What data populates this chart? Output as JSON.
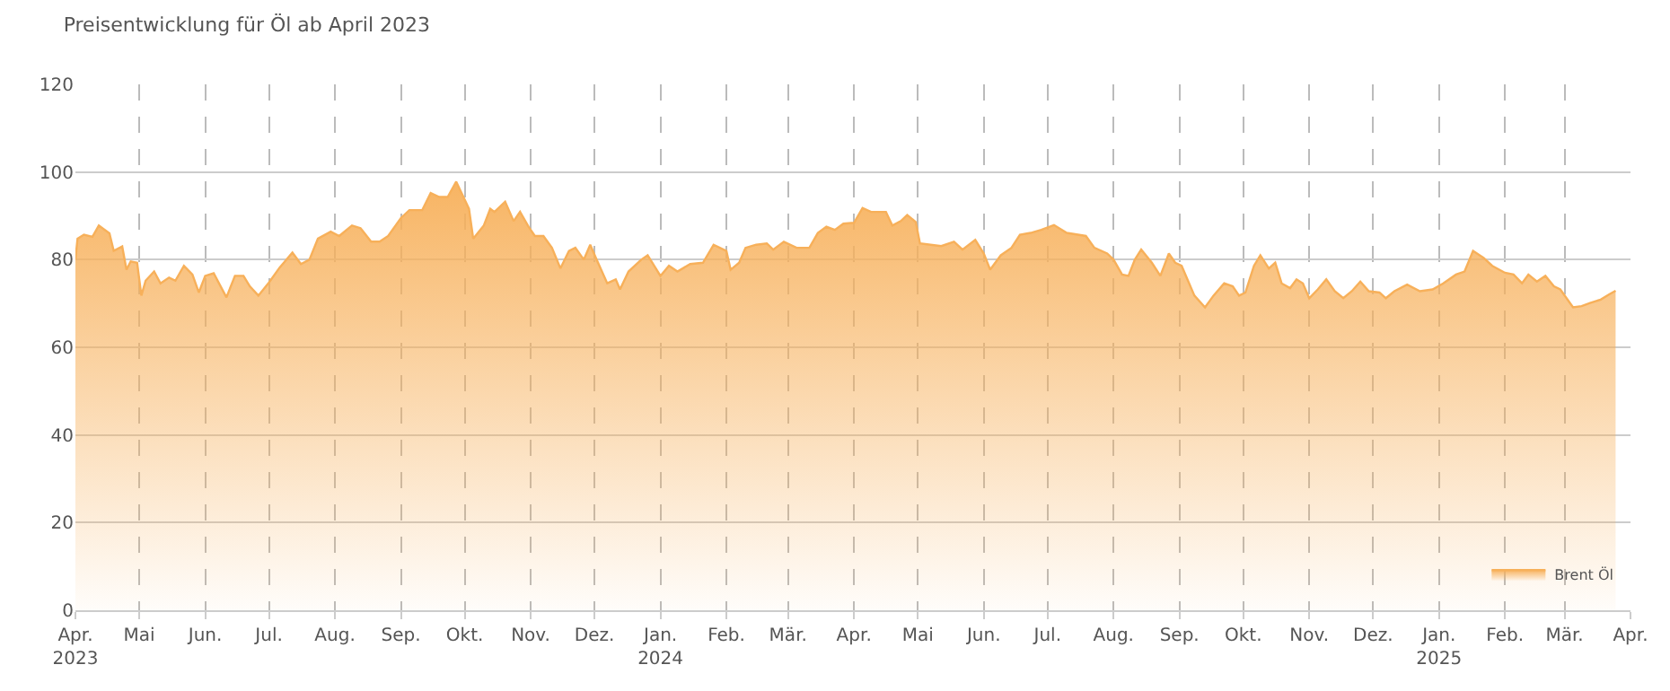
{
  "chart_data": {
    "type": "area",
    "title": "Preisentwicklung für Öl ab April 2023",
    "xlim": [
      "2023-04-01",
      "2025-04-01"
    ],
    "ylim": [
      0,
      120
    ],
    "yticks": [
      0,
      20,
      40,
      60,
      80,
      100,
      120
    ],
    "xticks": [
      {
        "value": "2023-04-01",
        "label": "Apr.\n2023"
      },
      {
        "value": "2023-05-01",
        "label": "Mai"
      },
      {
        "value": "2023-06-01",
        "label": "Jun."
      },
      {
        "value": "2023-07-01",
        "label": "Jul."
      },
      {
        "value": "2023-08-01",
        "label": "Aug."
      },
      {
        "value": "2023-09-01",
        "label": "Sep."
      },
      {
        "value": "2023-10-01",
        "label": "Okt."
      },
      {
        "value": "2023-11-01",
        "label": "Nov."
      },
      {
        "value": "2023-12-01",
        "label": "Dez."
      },
      {
        "value": "2024-01-01",
        "label": "Jan.\n2024"
      },
      {
        "value": "2024-02-01",
        "label": "Feb."
      },
      {
        "value": "2024-03-01",
        "label": "Mär."
      },
      {
        "value": "2024-04-01",
        "label": "Apr."
      },
      {
        "value": "2024-05-01",
        "label": "Mai"
      },
      {
        "value": "2024-06-01",
        "label": "Jun."
      },
      {
        "value": "2024-07-01",
        "label": "Jul."
      },
      {
        "value": "2024-08-01",
        "label": "Aug."
      },
      {
        "value": "2024-09-01",
        "label": "Sep."
      },
      {
        "value": "2024-10-01",
        "label": "Okt."
      },
      {
        "value": "2024-11-01",
        "label": "Nov."
      },
      {
        "value": "2024-12-01",
        "label": "Dez."
      },
      {
        "value": "2025-01-01",
        "label": "Jan.\n2025"
      },
      {
        "value": "2025-02-01",
        "label": "Feb."
      },
      {
        "value": "2025-03-01",
        "label": "Mär."
      },
      {
        "value": "2025-04-01",
        "label": "Apr."
      }
    ],
    "grid": true,
    "legend": "bottom right",
    "marker": "none",
    "line_style": "solid",
    "series": [
      {
        "name": "Brent Öl",
        "color": "#f7b05a",
        "x": [
          "2023-04-01",
          "2023-04-02",
          "2023-04-05",
          "2023-04-09",
          "2023-04-12",
          "2023-04-17",
          "2023-04-19",
          "2023-04-23",
          "2023-04-25",
          "2023-04-27",
          "2023-04-30",
          "2023-05-02",
          "2023-05-04",
          "2023-05-08",
          "2023-05-11",
          "2023-05-15",
          "2023-05-18",
          "2023-05-22",
          "2023-05-26",
          "2023-05-29",
          "2023-06-01",
          "2023-06-05",
          "2023-06-11",
          "2023-06-15",
          "2023-06-19",
          "2023-06-22",
          "2023-06-26",
          "2023-07-01",
          "2023-07-06",
          "2023-07-12",
          "2023-07-16",
          "2023-07-20",
          "2023-07-24",
          "2023-07-30",
          "2023-08-03",
          "2023-08-09",
          "2023-08-13",
          "2023-08-18",
          "2023-08-22",
          "2023-08-26",
          "2023-09-01",
          "2023-09-05",
          "2023-09-11",
          "2023-09-15",
          "2023-09-19",
          "2023-09-23",
          "2023-09-27",
          "2023-10-03",
          "2023-10-05",
          "2023-10-10",
          "2023-10-13",
          "2023-10-15",
          "2023-10-20",
          "2023-10-24",
          "2023-10-27",
          "2023-10-31",
          "2023-11-03",
          "2023-11-07",
          "2023-11-11",
          "2023-11-15",
          "2023-11-19",
          "2023-11-22",
          "2023-11-26",
          "2023-11-29",
          "2023-12-02",
          "2023-12-07",
          "2023-12-11",
          "2023-12-13",
          "2023-12-17",
          "2023-12-23",
          "2023-12-26",
          "2024-01-01",
          "2024-01-05",
          "2024-01-09",
          "2024-01-15",
          "2024-01-21",
          "2024-01-26",
          "2024-02-01",
          "2024-02-03",
          "2024-02-07",
          "2024-02-10",
          "2024-02-15",
          "2024-02-20",
          "2024-02-23",
          "2024-02-28",
          "2024-03-05",
          "2024-03-11",
          "2024-03-15",
          "2024-03-19",
          "2024-03-23",
          "2024-03-27",
          "2024-04-01",
          "2024-04-05",
          "2024-04-09",
          "2024-04-16",
          "2024-04-19",
          "2024-04-23",
          "2024-04-26",
          "2024-04-30",
          "2024-05-02",
          "2024-05-07",
          "2024-05-12",
          "2024-05-18",
          "2024-05-22",
          "2024-05-28",
          "2024-06-01",
          "2024-06-04",
          "2024-06-09",
          "2024-06-14",
          "2024-06-18",
          "2024-06-23",
          "2024-06-28",
          "2024-07-04",
          "2024-07-10",
          "2024-07-19",
          "2024-07-23",
          "2024-07-29",
          "2024-08-01",
          "2024-08-05",
          "2024-08-08",
          "2024-08-11",
          "2024-08-14",
          "2024-08-19",
          "2024-08-23",
          "2024-08-27",
          "2024-08-30",
          "2024-09-02",
          "2024-09-08",
          "2024-09-13",
          "2024-09-17",
          "2024-09-22",
          "2024-09-26",
          "2024-09-29",
          "2024-10-02",
          "2024-10-06",
          "2024-10-09",
          "2024-10-13",
          "2024-10-16",
          "2024-10-19",
          "2024-10-23",
          "2024-10-26",
          "2024-10-29",
          "2024-11-01",
          "2024-11-05",
          "2024-11-09",
          "2024-11-13",
          "2024-11-17",
          "2024-11-21",
          "2024-11-25",
          "2024-11-29",
          "2024-12-04",
          "2024-12-07",
          "2024-12-11",
          "2024-12-17",
          "2024-12-23",
          "2024-12-29",
          "2025-01-03",
          "2025-01-09",
          "2025-01-13",
          "2025-01-17",
          "2025-01-22",
          "2025-01-26",
          "2025-02-01",
          "2025-02-05",
          "2025-02-09",
          "2025-02-12",
          "2025-02-16",
          "2025-02-20",
          "2025-02-24",
          "2025-02-27",
          "2025-03-05",
          "2025-03-09",
          "2025-03-13",
          "2025-03-18",
          "2025-03-22",
          "2025-03-25"
        ],
        "values": [
          80,
          84.8,
          85.7,
          85.2,
          87.8,
          86,
          82,
          83,
          77.7,
          79.6,
          79.3,
          71.8,
          75.2,
          77.3,
          74.6,
          75.9,
          75.2,
          78.6,
          76.6,
          72.5,
          76.3,
          76.9,
          71.4,
          76.3,
          76.3,
          73.9,
          71.8,
          74.8,
          78.2,
          81.6,
          79,
          80,
          84.8,
          86.4,
          85.4,
          87.8,
          87.2,
          84.1,
          84.1,
          85.4,
          89.5,
          91.3,
          91.3,
          95.2,
          94.3,
          94.3,
          97.8,
          91.6,
          84.8,
          87.8,
          91.6,
          90.9,
          93.2,
          88.8,
          90.9,
          87.5,
          85.4,
          85.4,
          82.7,
          78,
          82,
          82.7,
          80,
          83.4,
          80,
          74.6,
          75.5,
          73.2,
          77.3,
          80,
          81,
          76.3,
          78.6,
          77.3,
          79,
          79.3,
          83.4,
          82,
          77.7,
          79.3,
          82.7,
          83.4,
          83.7,
          82.3,
          84.1,
          82.7,
          82.7,
          86.1,
          87.5,
          86.8,
          88.2,
          88.4,
          91.8,
          90.9,
          90.9,
          87.8,
          88.8,
          90.2,
          88.6,
          83.7,
          83.4,
          83.1,
          84.1,
          82.3,
          84.5,
          81.4,
          77.7,
          81,
          82.7,
          85.7,
          86.1,
          86.8,
          87.9,
          86.1,
          85.4,
          82.7,
          81.4,
          80,
          76.6,
          76.3,
          80,
          82.3,
          79.3,
          76.3,
          81.4,
          79.3,
          78.6,
          71.8,
          69.1,
          71.8,
          74.6,
          73.9,
          71.8,
          72.5,
          78.6,
          81,
          78,
          79.3,
          74.6,
          73.5,
          75.5,
          74.6,
          71.2,
          73.2,
          75.5,
          72.8,
          71.2,
          72.8,
          75,
          72.8,
          72.5,
          71.2,
          72.8,
          74.3,
          72.8,
          73.2,
          74.6,
          76.6,
          77.3,
          82,
          80.4,
          78.6,
          77,
          76.6,
          74.6,
          76.6,
          75,
          76.3,
          73.9,
          73.2,
          69.1,
          69.4,
          70.1,
          70.9,
          72.1,
          72.9
        ]
      }
    ]
  }
}
